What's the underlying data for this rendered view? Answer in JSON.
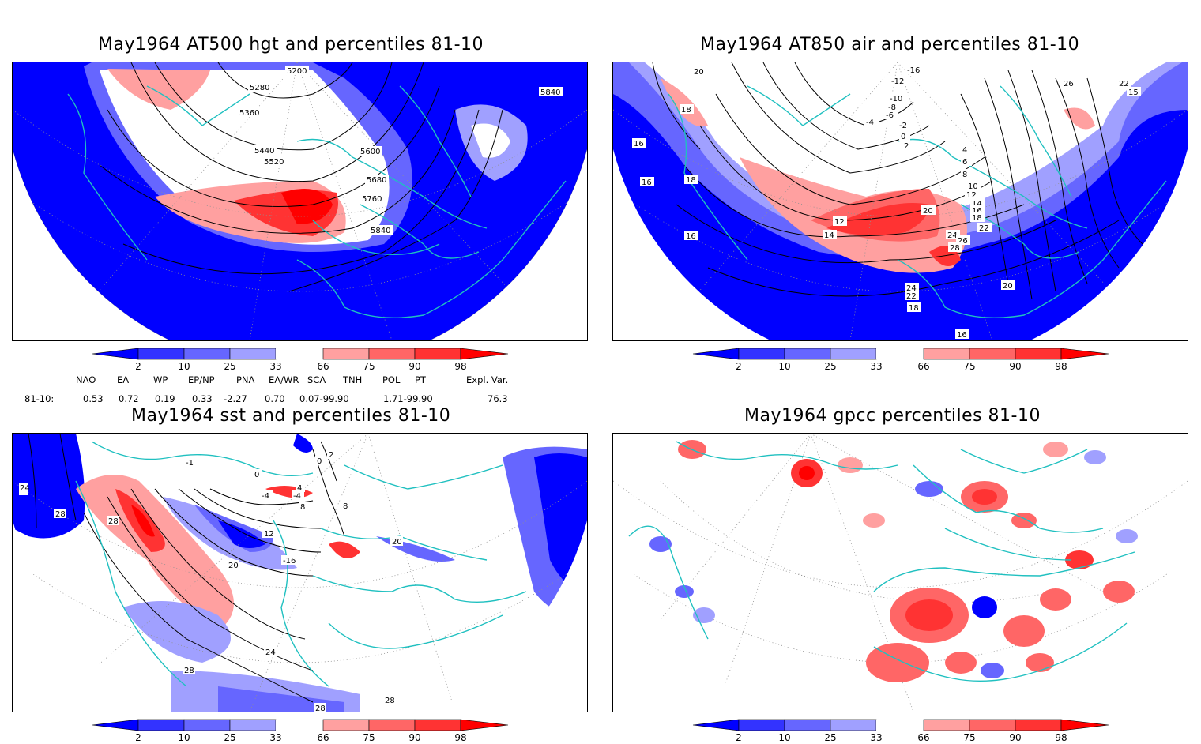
{
  "panels": [
    {
      "id": "p1",
      "title": "May1964 AT500 hgt and percentiles 81-10",
      "contour_labels": [
        "5200",
        "5280",
        "5360",
        "5440",
        "5520",
        "5600",
        "5680",
        "5760",
        "5840",
        "5840"
      ]
    },
    {
      "id": "p2",
      "title": "May1964 AT850 air and percentiles 81-10",
      "contour_labels": [
        "20",
        "18",
        "16",
        "16",
        "18",
        "16",
        "-16",
        "-12",
        "-10",
        "-8",
        "-6",
        "-4",
        "-2",
        "0",
        "2",
        "4",
        "6",
        "8",
        "10",
        "12",
        "14",
        "16",
        "18",
        "20",
        "22",
        "24",
        "26",
        "28",
        "24",
        "22",
        "18",
        "20",
        "16",
        "26",
        "22",
        "15",
        "12",
        "14"
      ]
    },
    {
      "id": "p3",
      "title": "May1964 sst and percentiles 81-10",
      "contour_labels": [
        "24",
        "28",
        "28",
        "-1",
        "0",
        "0",
        "2",
        "-4",
        "-4",
        "4",
        "8",
        "8",
        "12",
        "-16",
        "20",
        "20",
        "24",
        "28",
        "28",
        "28"
      ]
    },
    {
      "id": "p4",
      "title": "May1964 gpcc percentiles 81-10",
      "contour_labels": []
    }
  ],
  "colorbar": {
    "labels": [
      "2",
      "10",
      "25",
      "33",
      "66",
      "75",
      "90",
      "98"
    ],
    "colors": [
      "#0000ff",
      "#3333ff",
      "#6666ff",
      "#a0a0ff",
      "#ffffff",
      "#ffa0a0",
      "#ff6666",
      "#ff3333",
      "#ff0000"
    ]
  },
  "indices": {
    "headers": [
      "NAO",
      "EA",
      "WP",
      "EP/NP",
      "PNA",
      "EA/WR",
      "SCA",
      "TNH",
      "POL",
      "PT",
      "Expl. Var."
    ],
    "row_label": "81-10:",
    "values": [
      "0.53",
      "0.72",
      "0.19",
      "0.33",
      "-2.27",
      "0.70",
      "0.07-99.90",
      "1.71-99.90",
      "76.3"
    ]
  },
  "colors": {
    "coast": "#20c0c0",
    "contour": "#000000",
    "grid": "#909090"
  }
}
